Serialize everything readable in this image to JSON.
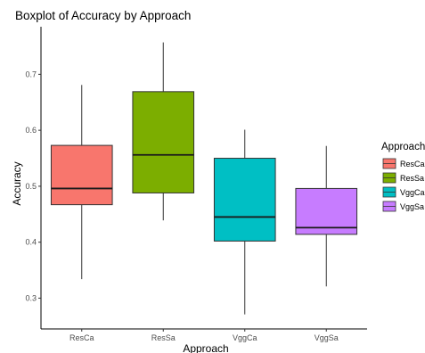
{
  "chart_data": {
    "type": "boxplot",
    "title": "Boxplot of Accuracy by Approach",
    "xlabel": "Approach",
    "ylabel": "Accuracy",
    "ylim": [
      0.245,
      0.785
    ],
    "yticks": [
      0.3,
      0.4,
      0.5,
      0.6,
      0.7
    ],
    "ytick_labels": [
      "0.3",
      "0.4",
      "0.5",
      "0.6",
      "0.7"
    ],
    "categories": [
      "ResCa",
      "ResSa",
      "VggCa",
      "VggSa"
    ],
    "boxes": [
      {
        "category": "ResCa",
        "min": 0.334,
        "q1": 0.467,
        "median": 0.496,
        "q3": 0.573,
        "max": 0.681,
        "color": "#F8766D"
      },
      {
        "category": "ResSa",
        "min": 0.439,
        "q1": 0.488,
        "median": 0.556,
        "q3": 0.669,
        "max": 0.757,
        "color": "#7CAE00"
      },
      {
        "category": "VggCa",
        "min": 0.271,
        "q1": 0.402,
        "median": 0.445,
        "q3": 0.55,
        "max": 0.601,
        "color": "#00BFC4"
      },
      {
        "category": "VggSa",
        "min": 0.321,
        "q1": 0.414,
        "median": 0.426,
        "q3": 0.496,
        "max": 0.572,
        "color": "#C77CFF"
      }
    ],
    "grid": false,
    "legend": {
      "title": "Approach",
      "position": "right",
      "entries": [
        {
          "label": "ResCa",
          "color": "#F8766D"
        },
        {
          "label": "ResSa",
          "color": "#7CAE00"
        },
        {
          "label": "VggCa",
          "color": "#00BFC4"
        },
        {
          "label": "VggSa",
          "color": "#C77CFF"
        }
      ]
    }
  }
}
